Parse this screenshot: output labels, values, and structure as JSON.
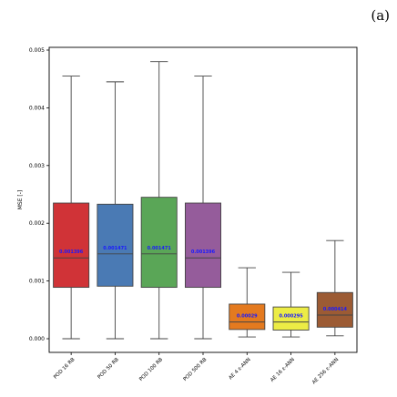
{
  "panel_label": "(a)",
  "chart_data": {
    "type": "box",
    "title": "",
    "xlabel": "",
    "ylabel": "MSE [-]",
    "ylim": [
      0,
      0.005
    ],
    "yticks": [
      "0.000",
      "0.001",
      "0.002",
      "0.003",
      "0.004",
      "0.005"
    ],
    "ytick_values": [
      0,
      0.001,
      0.002,
      0.003,
      0.004,
      0.005
    ],
    "grid": false,
    "legend": "none",
    "median_label_color": "#1a1aff",
    "boxes": [
      {
        "category": "POD 16 RB",
        "whisker_low": 0.0,
        "q1": 0.00089,
        "median": 0.0014,
        "q3": 0.00235,
        "whisker_high": 0.00455,
        "label": "0.001396",
        "color": "#d03337"
      },
      {
        "category": "POD 50 RB",
        "whisker_low": 0.0,
        "q1": 0.00091,
        "median": 0.00147,
        "q3": 0.00233,
        "whisker_high": 0.00445,
        "label": "0.001471",
        "color": "#4a7ab4"
      },
      {
        "category": "POD 100 RB",
        "whisker_low": 0.0,
        "q1": 0.00089,
        "median": 0.00147,
        "q3": 0.00245,
        "whisker_high": 0.0048,
        "label": "0.001471",
        "color": "#5aa657"
      },
      {
        "category": "POD 500 RB",
        "whisker_low": 0.0,
        "q1": 0.00089,
        "median": 0.0014,
        "q3": 0.00235,
        "whisker_high": 0.00455,
        "label": "0.001396",
        "color": "#955c9b"
      },
      {
        "category": "AE 4 ε-ANN",
        "whisker_low": 3e-05,
        "q1": 0.00016,
        "median": 0.00029,
        "q3": 0.0006,
        "whisker_high": 0.00123,
        "label": "0.00029",
        "color": "#e47a1f"
      },
      {
        "category": "AE 16 ε-ANN",
        "whisker_low": 3e-05,
        "q1": 0.00015,
        "median": 0.00029,
        "q3": 0.00055,
        "whisker_high": 0.00115,
        "label": "0.000295",
        "color": "#ecec45"
      },
      {
        "category": "AE 256 ε-ANN",
        "whisker_low": 5e-05,
        "q1": 0.0002,
        "median": 0.00041,
        "q3": 0.0008,
        "whisker_high": 0.0017,
        "label": "0.000414",
        "color": "#9c5b34"
      }
    ]
  }
}
